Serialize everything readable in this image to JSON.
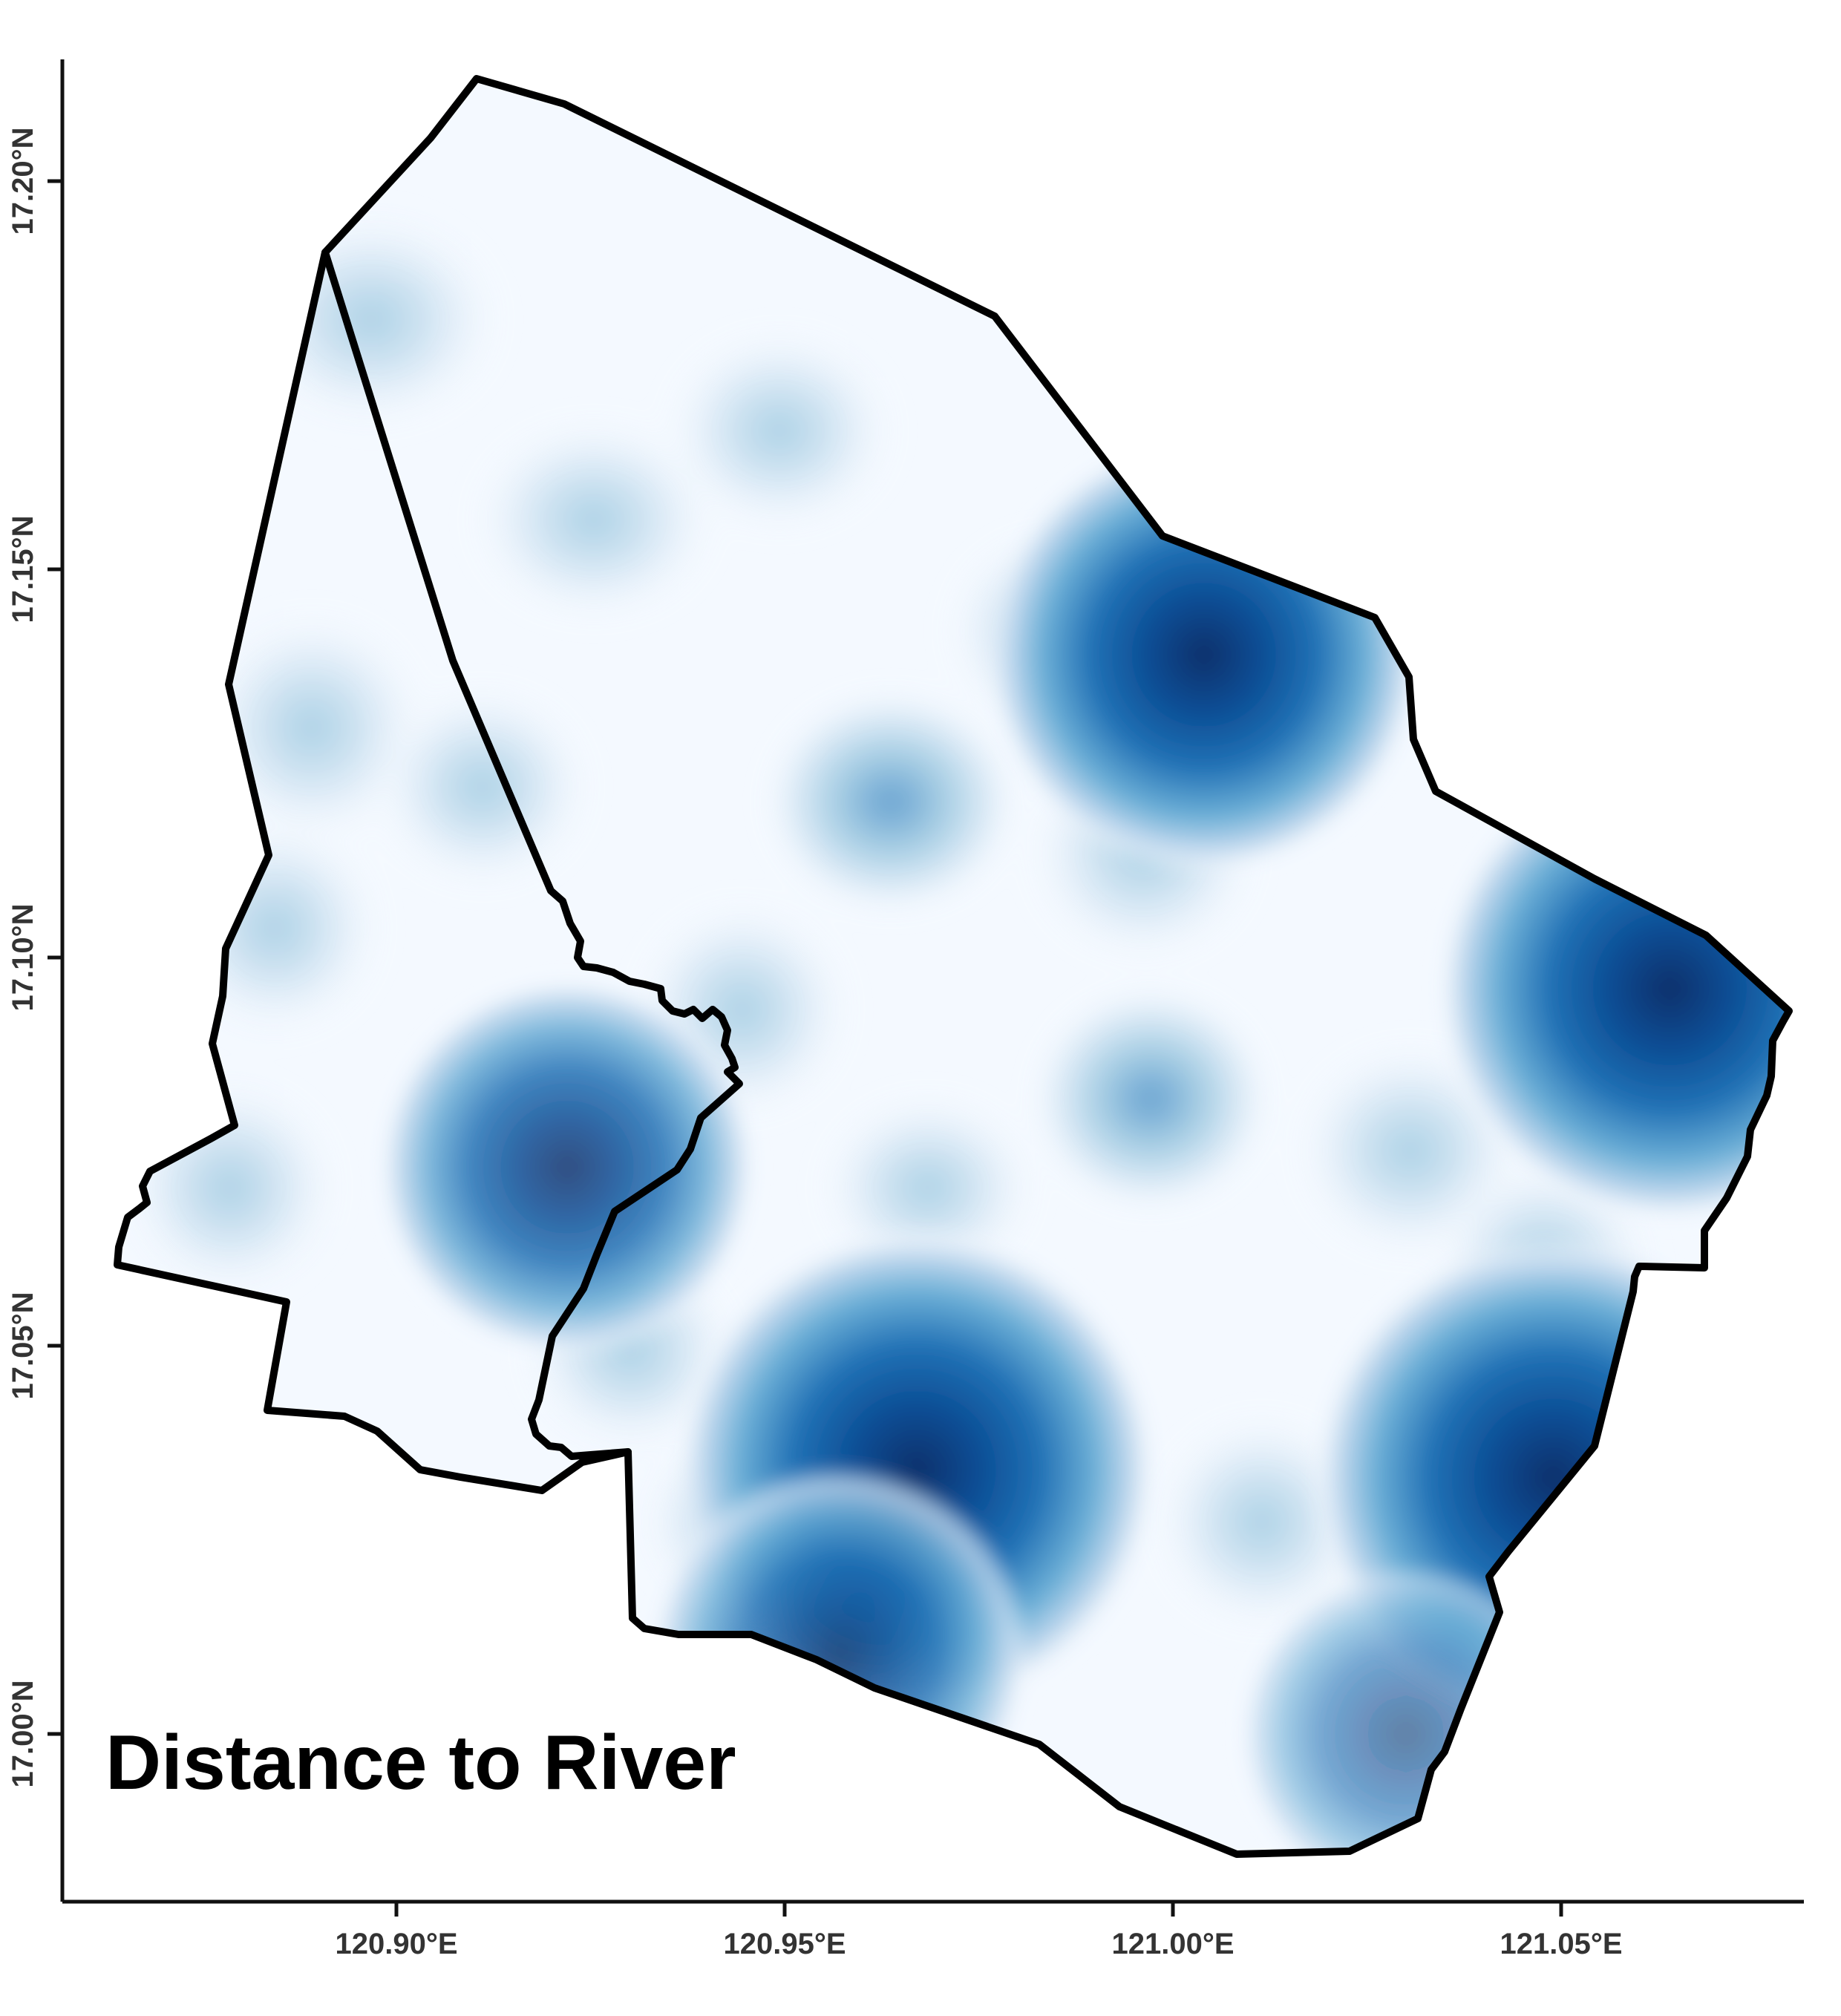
{
  "map": {
    "title": "Distance to River",
    "x_axis": {
      "ticks": [
        {
          "value": 120.9,
          "label": "120.90°E"
        },
        {
          "value": 120.95,
          "label": "120.95°E"
        },
        {
          "value": 121.0,
          "label": "121.00°E"
        },
        {
          "value": 121.05,
          "label": "121.05°E"
        }
      ],
      "range": [
        120.857,
        121.082
      ]
    },
    "y_axis": {
      "ticks": [
        {
          "value": 17.0,
          "label": "17.00°N"
        },
        {
          "value": 17.05,
          "label": "17.05°N"
        },
        {
          "value": 17.1,
          "label": "17.10°N"
        },
        {
          "value": 17.15,
          "label": "17.15°N"
        },
        {
          "value": 17.2,
          "label": "17.20°N"
        }
      ],
      "range": [
        16.978,
        17.215
      ]
    },
    "colormap": {
      "name": "blues",
      "low": "#f7fbff",
      "high": "#08306b"
    },
    "hotspots": [
      {
        "lon": 121.064,
        "lat": 17.096,
        "level": 1.0
      },
      {
        "lon": 121.004,
        "lat": 17.139,
        "level": 0.9
      },
      {
        "lon": 120.967,
        "lat": 17.034,
        "level": 0.92
      },
      {
        "lon": 121.049,
        "lat": 17.033,
        "level": 0.88
      },
      {
        "lon": 120.922,
        "lat": 17.073,
        "level": 0.75
      },
      {
        "lon": 120.957,
        "lat": 17.01,
        "level": 0.7
      },
      {
        "lon": 121.03,
        "lat": 17.0,
        "level": 0.55
      }
    ]
  }
}
